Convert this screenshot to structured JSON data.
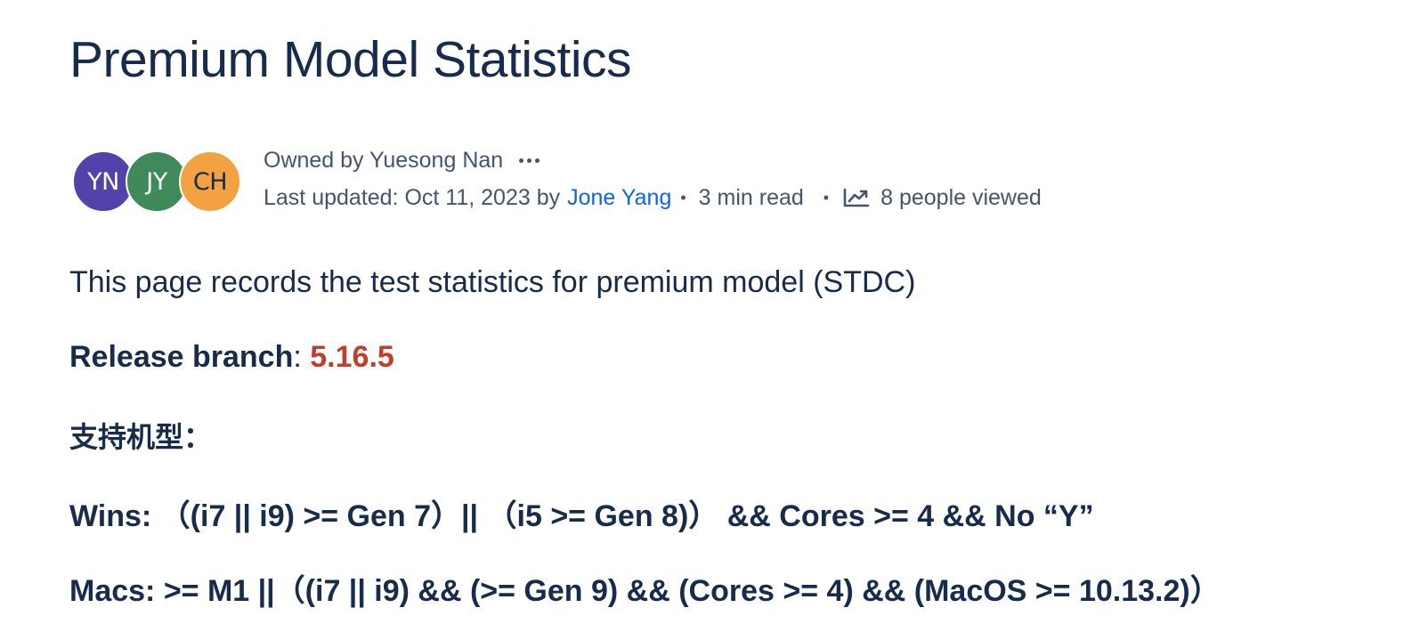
{
  "page": {
    "title": "Premium Model Statistics"
  },
  "byline": {
    "avatars": [
      {
        "initials": "YN",
        "color": "#5243aa",
        "text_color": "#ffffff"
      },
      {
        "initials": "JY",
        "color": "#3e8a5a",
        "text_color": "#ffffff"
      },
      {
        "initials": "CH",
        "color": "#f2a240",
        "text_color": "#172b4d"
      }
    ],
    "owned_by": "Owned by Yuesong Nan",
    "more_icon": "more-horizontal-icon",
    "last_updated_prefix": "Last updated: Oct 11, 2023 by",
    "last_updated_author": "Jone Yang",
    "separator": "•",
    "read_time": "3 min read",
    "views_icon": "line-chart-icon",
    "views": "8 people viewed"
  },
  "content": {
    "intro": "This page records the test statistics for premium model (STDC)",
    "release_label": "Release branch",
    "release_colon": ": ",
    "release_version": "5.16.5",
    "support_heading": "支持机型：",
    "wins": "Wins: （(i7 || i9)  >= Gen 7）||  （i5 >= Gen 8)）  &&  Cores >= 4  && No “Y”",
    "macs": "Macs: >= M1 ||（(i7 || i9)  && (>= Gen 9)  && (Cores >= 4)  && (MacOS >= 10.13.2)）"
  },
  "colors": {
    "text": "#172b4d",
    "subtle_text": "#44546f",
    "link": "#0c66e4",
    "release_version": "#bf3f2e"
  }
}
